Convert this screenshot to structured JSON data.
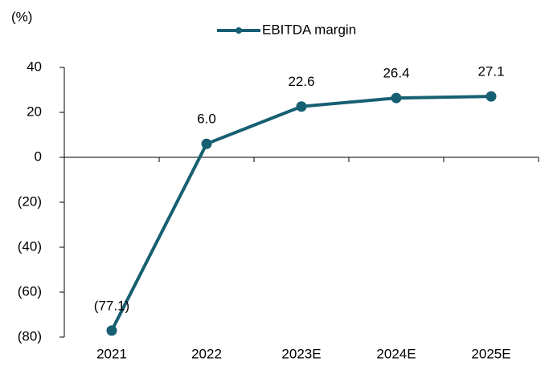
{
  "chart_data": {
    "type": "line",
    "y_label": "(%)",
    "categories": [
      "2021",
      "2022",
      "2023E",
      "2024E",
      "2025E"
    ],
    "series": [
      {
        "name": "EBITDA margin",
        "color": "#175f72",
        "values": [
          -77.1,
          6.0,
          22.6,
          26.4,
          27.1
        ],
        "value_labels": [
          "(77.1)",
          "6.0",
          "22.6",
          "26.4",
          "27.1"
        ]
      }
    ],
    "ylim": [
      -80,
      40
    ],
    "yticks": [
      {
        "value": -80,
        "label": "(80)"
      },
      {
        "value": -60,
        "label": "(60)"
      },
      {
        "value": -40,
        "label": "(40)"
      },
      {
        "value": -20,
        "label": "(20)"
      },
      0,
      20,
      40
    ],
    "legend": "top",
    "grid": false
  }
}
